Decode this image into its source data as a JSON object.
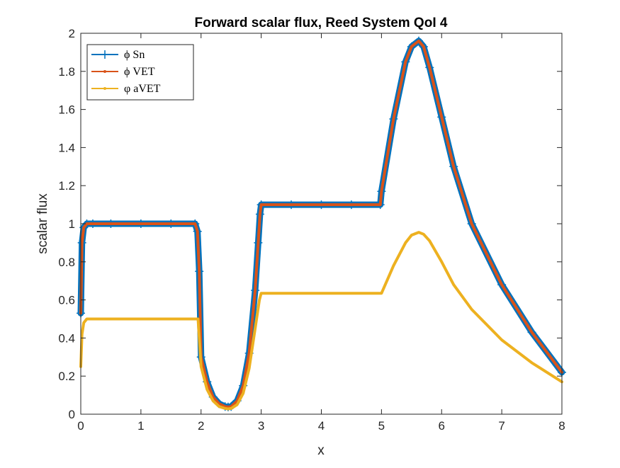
{
  "chart_data": {
    "type": "line",
    "title": "Forward scalar flux, Reed System QoI 4",
    "xlabel": "x",
    "ylabel": "scalar flux",
    "xlim": [
      0,
      8
    ],
    "ylim": [
      0,
      2
    ],
    "x_ticks": [
      "0",
      "1",
      "2",
      "3",
      "4",
      "5",
      "6",
      "7",
      "8"
    ],
    "y_ticks": [
      "0",
      "0.2",
      "0.4",
      "0.6",
      "0.8",
      "1",
      "1.2",
      "1.4",
      "1.6",
      "1.8",
      "2"
    ],
    "grid": false,
    "legend_position": "top-left",
    "series": [
      {
        "name": "ϕ Sn",
        "color": "#0072BD",
        "marker": "plus",
        "x": [
          0,
          0.02,
          0.05,
          0.1,
          0.2,
          0.5,
          1.0,
          1.5,
          1.9,
          1.94,
          1.97,
          2.0,
          2.1,
          2.2,
          2.3,
          2.4,
          2.45,
          2.5,
          2.6,
          2.7,
          2.8,
          2.9,
          2.95,
          2.98,
          3.0,
          3.5,
          4.0,
          4.5,
          4.98,
          5.0,
          5.2,
          5.4,
          5.5,
          5.62,
          5.7,
          5.8,
          6.0,
          6.2,
          6.5,
          7.0,
          7.5,
          8.0
        ],
        "y": [
          0.53,
          0.9,
          0.98,
          1.0,
          1.0,
          1.0,
          1.0,
          1.0,
          1.0,
          0.96,
          0.75,
          0.3,
          0.17,
          0.09,
          0.055,
          0.04,
          0.038,
          0.04,
          0.07,
          0.15,
          0.32,
          0.65,
          0.9,
          1.05,
          1.1,
          1.1,
          1.1,
          1.1,
          1.1,
          1.17,
          1.55,
          1.85,
          1.93,
          1.96,
          1.93,
          1.82,
          1.56,
          1.3,
          1.0,
          0.68,
          0.43,
          0.22
        ]
      },
      {
        "name": "ϕ VET",
        "color": "#D95319",
        "marker": "dot",
        "x": [
          0,
          0.02,
          0.05,
          0.1,
          0.2,
          0.5,
          1.0,
          1.5,
          1.9,
          1.94,
          1.97,
          2.0,
          2.1,
          2.2,
          2.3,
          2.4,
          2.45,
          2.5,
          2.6,
          2.7,
          2.8,
          2.9,
          2.95,
          2.98,
          3.0,
          3.5,
          4.0,
          4.5,
          4.98,
          5.0,
          5.2,
          5.4,
          5.5,
          5.62,
          5.7,
          5.8,
          6.0,
          6.2,
          6.5,
          7.0,
          7.5,
          8.0
        ],
        "y": [
          0.53,
          0.9,
          0.98,
          1.0,
          1.0,
          1.0,
          1.0,
          1.0,
          1.0,
          0.96,
          0.75,
          0.3,
          0.17,
          0.09,
          0.055,
          0.04,
          0.038,
          0.04,
          0.07,
          0.15,
          0.32,
          0.65,
          0.9,
          1.05,
          1.1,
          1.1,
          1.1,
          1.1,
          1.1,
          1.17,
          1.55,
          1.85,
          1.93,
          1.96,
          1.93,
          1.82,
          1.56,
          1.3,
          1.0,
          0.68,
          0.43,
          0.22
        ]
      },
      {
        "name": "φ aVET",
        "color": "#EDB120",
        "marker": "dot",
        "x": [
          0,
          0.02,
          0.05,
          0.1,
          0.2,
          0.5,
          1.0,
          1.5,
          1.95,
          2.0,
          2.1,
          2.2,
          2.3,
          2.4,
          2.45,
          2.5,
          2.6,
          2.7,
          2.8,
          2.9,
          2.97,
          3.0,
          3.5,
          4.0,
          4.5,
          5.0,
          5.2,
          5.4,
          5.5,
          5.62,
          5.7,
          5.8,
          6.0,
          6.2,
          6.5,
          7.0,
          7.5,
          8.0
        ],
        "y": [
          0.25,
          0.42,
          0.48,
          0.5,
          0.5,
          0.5,
          0.5,
          0.5,
          0.5,
          0.25,
          0.13,
          0.07,
          0.04,
          0.03,
          0.028,
          0.03,
          0.05,
          0.11,
          0.24,
          0.45,
          0.6,
          0.635,
          0.635,
          0.635,
          0.635,
          0.635,
          0.78,
          0.9,
          0.94,
          0.955,
          0.945,
          0.91,
          0.8,
          0.68,
          0.55,
          0.39,
          0.27,
          0.17
        ]
      }
    ]
  }
}
